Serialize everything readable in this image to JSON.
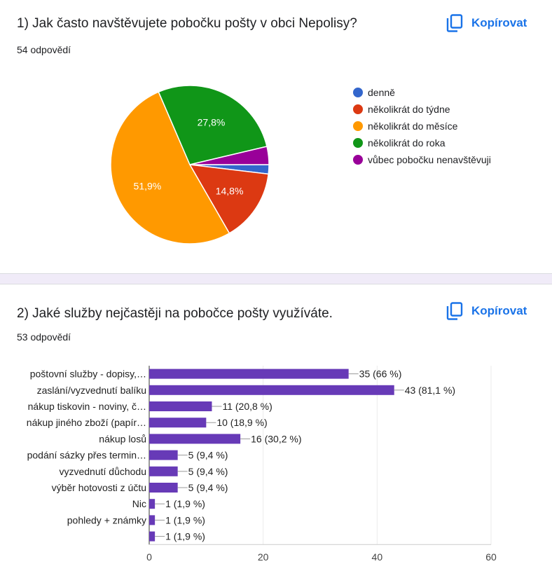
{
  "q1": {
    "title": "1) Jak často navštěvujete pobočku pošty v obci Nepolisy?",
    "count": "54 odpovědí",
    "copy_label": "Kopírovat"
  },
  "q2": {
    "title": "2) Jaké služby nejčastěji na pobočce pošty využíváte.",
    "count": "53 odpovědí",
    "copy_label": "Kopírovat"
  },
  "colors": {
    "accent": "#1a73e8",
    "bar": "#673ab7",
    "separator": "#f0ebf8"
  },
  "icons": {
    "copy": "copy-icon"
  },
  "chart_data": [
    {
      "type": "pie",
      "title": "",
      "legend_position": "right",
      "slices": [
        {
          "label": "denně",
          "value": 1.9,
          "color": "#3366cc",
          "data_label": ""
        },
        {
          "label": "několikrát do týdne",
          "value": 14.8,
          "color": "#dc3912",
          "data_label": "14,8%"
        },
        {
          "label": "několikrát do měsíce",
          "value": 51.9,
          "color": "#ff9900",
          "data_label": "51,9%"
        },
        {
          "label": "několikrát do roka",
          "value": 27.8,
          "color": "#109618",
          "data_label": "27,8%"
        },
        {
          "label": "vůbec pobočku nenavštěvuji",
          "value": 3.7,
          "color": "#990099",
          "data_label": ""
        }
      ]
    },
    {
      "type": "bar",
      "orientation": "horizontal",
      "categories": [
        "poštovní služby - dopisy,…",
        "zaslání/vyzvednutí balíku",
        "nákup tiskovin - noviny, č…",
        "nákup jiného zboží (papír…",
        "nákup losů",
        "podání sázky přes termin…",
        "vyzvednutí důchodu",
        "výběr hotovosti z účtu",
        "Nic",
        "pohledy + známky",
        ""
      ],
      "values": [
        35,
        43,
        11,
        10,
        16,
        5,
        5,
        5,
        1,
        1,
        1
      ],
      "data_labels": [
        "35 (66 %)",
        "43 (81,1 %)",
        "11 (20,8 %)",
        "10 (18,9 %)",
        "16 (30,2 %)",
        "5 (9,4 %)",
        "5 (9,4 %)",
        "5 (9,4 %)",
        "1 (1,9 %)",
        "1 (1,9 %)",
        "1 (1,9 %)"
      ],
      "xlim": [
        0,
        60
      ],
      "xticks": [
        0,
        20,
        40,
        60
      ],
      "grid": true,
      "color": "#673ab7"
    }
  ]
}
